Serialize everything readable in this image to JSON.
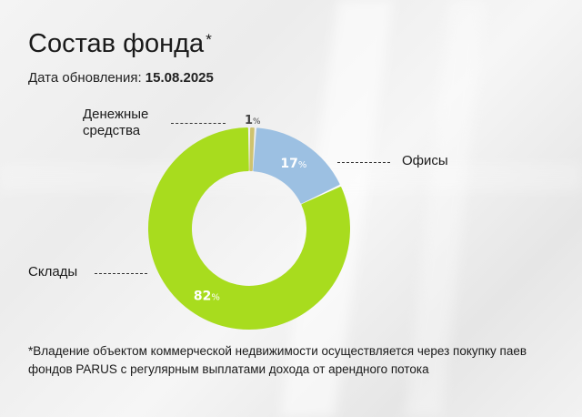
{
  "header": {
    "title": "Состав фонда",
    "title_mark": "*",
    "updated_label": "Дата обновления:",
    "updated_date": "15.08.2025"
  },
  "chart_data": {
    "type": "pie",
    "variant": "donut",
    "categories": [
      "Денежные средства",
      "Офисы",
      "Склады"
    ],
    "values": [
      1,
      17,
      82
    ],
    "value_labels": [
      "1%",
      "17%",
      "82%"
    ],
    "colors": [
      "#cfc36e",
      "#9cc0e2",
      "#a8dc1e"
    ],
    "legend_placement": "leader-lines"
  },
  "labels": {
    "cash_line1": "Денежные",
    "cash_line2": "средства",
    "offices": "Офисы",
    "warehouses": "Склады"
  },
  "footnote": "*Владение объектом коммерческой недвижимости осуществляется через покупку паев фондов PARUS с регулярным выплатами дохода от арендного потока"
}
